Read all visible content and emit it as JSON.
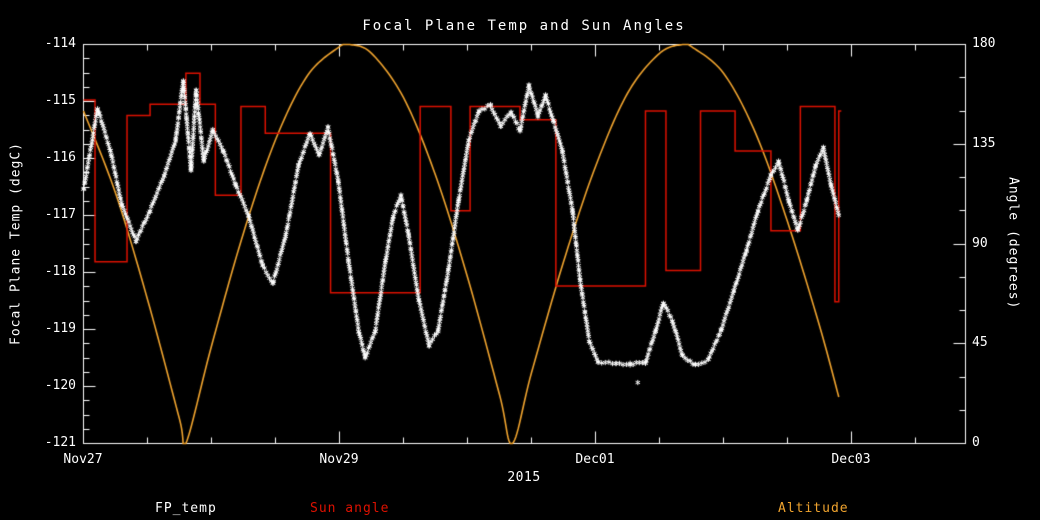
{
  "title": "Focal Plane Temp and Sun Angles",
  "year_label": "2015",
  "axes": {
    "x": {
      "ticks": [
        "Nov27",
        "Nov29",
        "Dec01",
        "Dec03"
      ]
    },
    "y_left": {
      "label": "Focal Plane Temp (degC)",
      "ticks": [
        "-114",
        "-115",
        "-116",
        "-117",
        "-118",
        "-119",
        "-120",
        "-121"
      ]
    },
    "y_right": {
      "label": "Angle (degrees)",
      "ticks": [
        "180",
        "135",
        "90",
        "45",
        "0"
      ]
    }
  },
  "legend": [
    {
      "label": "FP_temp",
      "color": "#ffffff"
    },
    {
      "label": "Sun angle",
      "color": "#dd1100"
    },
    {
      "label": "Altitude",
      "color": "#efa32e"
    }
  ],
  "chart_data": {
    "type": "line",
    "title": "Focal Plane Temp and Sun Angles",
    "x_unit": "days since Nov27 2015",
    "xlim": [
      0,
      6.89
    ],
    "x_tick_days": [
      0,
      2,
      4,
      6
    ],
    "x_minor_step": 0.5,
    "ylim_left": [
      -121,
      -114
    ],
    "y_left_tick_step": 1,
    "y_left_minor_step": 0.25,
    "ylim_right": [
      0,
      180
    ],
    "y_right_tick_step": 45,
    "y_right_minor_step": 15,
    "grid": false,
    "background": "#000000",
    "series": [
      {
        "name": "FP_temp",
        "axis": "left",
        "style": "scatter-asterisk",
        "color": "#ffffff",
        "points": [
          [
            0.0,
            -116.56
          ],
          [
            0.11,
            -115.12
          ],
          [
            0.21,
            -115.86
          ],
          [
            0.3,
            -116.82
          ],
          [
            0.41,
            -117.44
          ],
          [
            0.52,
            -116.91
          ],
          [
            0.63,
            -116.3
          ],
          [
            0.72,
            -115.68
          ],
          [
            0.78,
            -114.63
          ],
          [
            0.84,
            -116.21
          ],
          [
            0.88,
            -114.81
          ],
          [
            0.94,
            -116.04
          ],
          [
            1.01,
            -115.51
          ],
          [
            1.09,
            -115.86
          ],
          [
            1.19,
            -116.47
          ],
          [
            1.29,
            -117.0
          ],
          [
            1.4,
            -117.88
          ],
          [
            1.48,
            -118.19
          ],
          [
            1.58,
            -117.35
          ],
          [
            1.68,
            -116.12
          ],
          [
            1.77,
            -115.56
          ],
          [
            1.84,
            -115.95
          ],
          [
            1.91,
            -115.46
          ],
          [
            1.99,
            -116.39
          ],
          [
            2.07,
            -117.79
          ],
          [
            2.15,
            -119.02
          ],
          [
            2.2,
            -119.49
          ],
          [
            2.28,
            -119.02
          ],
          [
            2.36,
            -117.79
          ],
          [
            2.42,
            -117.0
          ],
          [
            2.48,
            -116.65
          ],
          [
            2.54,
            -117.35
          ],
          [
            2.62,
            -118.49
          ],
          [
            2.7,
            -119.28
          ],
          [
            2.77,
            -119.02
          ],
          [
            2.85,
            -117.96
          ],
          [
            2.93,
            -116.74
          ],
          [
            3.01,
            -115.68
          ],
          [
            3.09,
            -115.16
          ],
          [
            3.18,
            -115.07
          ],
          [
            3.26,
            -115.42
          ],
          [
            3.34,
            -115.19
          ],
          [
            3.41,
            -115.51
          ],
          [
            3.48,
            -114.72
          ],
          [
            3.55,
            -115.25
          ],
          [
            3.61,
            -114.9
          ],
          [
            3.67,
            -115.33
          ],
          [
            3.74,
            -115.86
          ],
          [
            3.82,
            -116.91
          ],
          [
            3.88,
            -118.14
          ],
          [
            3.95,
            -119.19
          ],
          [
            4.02,
            -119.58
          ],
          [
            4.16,
            -119.6
          ],
          [
            4.27,
            -119.61
          ],
          [
            4.39,
            -119.58
          ],
          [
            4.47,
            -119.02
          ],
          [
            4.53,
            -118.53
          ],
          [
            4.6,
            -118.84
          ],
          [
            4.68,
            -119.46
          ],
          [
            4.78,
            -119.63
          ],
          [
            4.88,
            -119.54
          ],
          [
            4.98,
            -119.02
          ],
          [
            5.08,
            -118.32
          ],
          [
            5.18,
            -117.61
          ],
          [
            5.27,
            -116.91
          ],
          [
            5.37,
            -116.3
          ],
          [
            5.43,
            -116.04
          ],
          [
            5.51,
            -116.74
          ],
          [
            5.58,
            -117.26
          ],
          [
            5.65,
            -116.74
          ],
          [
            5.72,
            -116.12
          ],
          [
            5.78,
            -115.82
          ],
          [
            5.84,
            -116.47
          ],
          [
            5.9,
            -117.0
          ]
        ],
        "outliers": [
          [
            4.33,
            -119.93
          ]
        ]
      },
      {
        "name": "Sun angle",
        "axis": "right",
        "style": "step",
        "color": "#dd1100",
        "x_end": 5.92,
        "points": [
          [
            0.0,
            155
          ],
          [
            0.09,
            82
          ],
          [
            0.34,
            148
          ],
          [
            0.52,
            153
          ],
          [
            0.8,
            167
          ],
          [
            0.91,
            153
          ],
          [
            1.03,
            112
          ],
          [
            1.23,
            152
          ],
          [
            1.42,
            140
          ],
          [
            1.93,
            68
          ],
          [
            2.63,
            152
          ],
          [
            2.87,
            105
          ],
          [
            3.02,
            152
          ],
          [
            3.41,
            146
          ],
          [
            3.69,
            71
          ],
          [
            4.39,
            150
          ],
          [
            4.55,
            78
          ],
          [
            4.82,
            150
          ],
          [
            5.09,
            132
          ],
          [
            5.37,
            96
          ],
          [
            5.6,
            152
          ],
          [
            5.87,
            64
          ],
          [
            5.9,
            150
          ]
        ]
      },
      {
        "name": "Altitude",
        "axis": "right",
        "style": "smooth",
        "color": "#efa32e",
        "points": [
          [
            0.0,
            150
          ],
          [
            0.25,
            113
          ],
          [
            0.5,
            65
          ],
          [
            0.75,
            11
          ],
          [
            0.8,
            0
          ],
          [
            1.0,
            44
          ],
          [
            1.25,
            95
          ],
          [
            1.5,
            137
          ],
          [
            1.75,
            166
          ],
          [
            2.0,
            179
          ],
          [
            2.08,
            180
          ],
          [
            2.25,
            176
          ],
          [
            2.5,
            156
          ],
          [
            2.75,
            121
          ],
          [
            3.0,
            75
          ],
          [
            3.25,
            22
          ],
          [
            3.35,
            0
          ],
          [
            3.5,
            32
          ],
          [
            3.75,
            82
          ],
          [
            4.0,
            125
          ],
          [
            4.25,
            158
          ],
          [
            4.5,
            176
          ],
          [
            4.68,
            180
          ],
          [
            4.75,
            179
          ],
          [
            5.0,
            167
          ],
          [
            5.25,
            140
          ],
          [
            5.5,
            100
          ],
          [
            5.75,
            53
          ],
          [
            5.9,
            21
          ]
        ]
      }
    ]
  }
}
